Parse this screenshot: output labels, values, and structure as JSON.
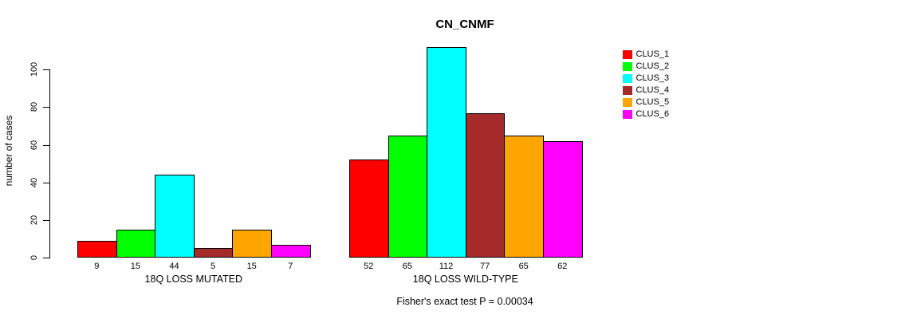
{
  "chart_data": {
    "type": "bar",
    "title": "CN_CNMF",
    "ylabel": "number of cases",
    "annotation": "Fisher's exact test P = 0.00034",
    "ylim": [
      0,
      116
    ],
    "yticks": [
      0,
      20,
      40,
      60,
      80,
      100
    ],
    "grid": false,
    "legend_position": "right",
    "legend": [
      "CLUS_1",
      "CLUS_2",
      "CLUS_3",
      "CLUS_4",
      "CLUS_5",
      "CLUS_6"
    ],
    "colors": [
      "#FF0000",
      "#00FF00",
      "#00FFFF",
      "#A52A2A",
      "#FFA500",
      "#FF00FF"
    ],
    "groups": [
      {
        "label": "18Q LOSS MUTATED",
        "values": [
          9,
          15,
          44,
          5,
          15,
          7
        ]
      },
      {
        "label": "18Q LOSS WILD-TYPE",
        "values": [
          52,
          65,
          112,
          77,
          65,
          62
        ]
      }
    ]
  }
}
